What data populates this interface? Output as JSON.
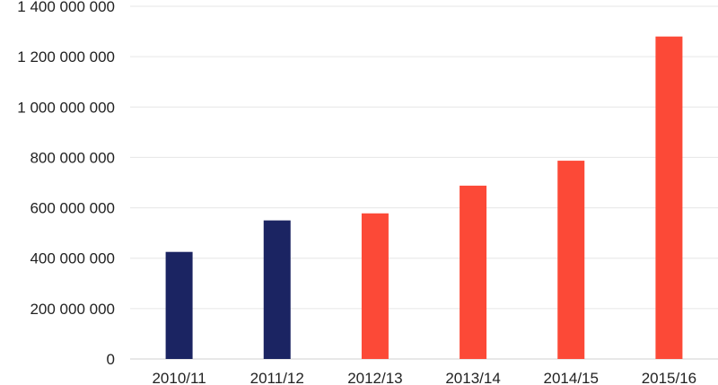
{
  "chart_data": {
    "type": "bar",
    "title": "",
    "xlabel": "",
    "ylabel": "",
    "categories": [
      "2010/11",
      "2011/12",
      "2012/13",
      "2013/14",
      "2014/15",
      "2015/16"
    ],
    "values": [
      425000000,
      550000000,
      578000000,
      688000000,
      787000000,
      1280000000
    ],
    "bar_colors": [
      "#1b2462",
      "#1b2462",
      "#fc4937",
      "#fc4937",
      "#fc4937",
      "#fc4937"
    ],
    "ylim": [
      0,
      1400000000
    ],
    "y_ticks": [
      0,
      200000000,
      400000000,
      600000000,
      800000000,
      1000000000,
      1200000000,
      1400000000
    ],
    "y_tick_labels": [
      "0",
      "200 000 000",
      "400 000 000",
      "600 000 000",
      "800 000 000",
      "1 000 000 000",
      "1 200 000 000",
      "1 400 000 000"
    ],
    "grid": true,
    "legend": "none"
  }
}
